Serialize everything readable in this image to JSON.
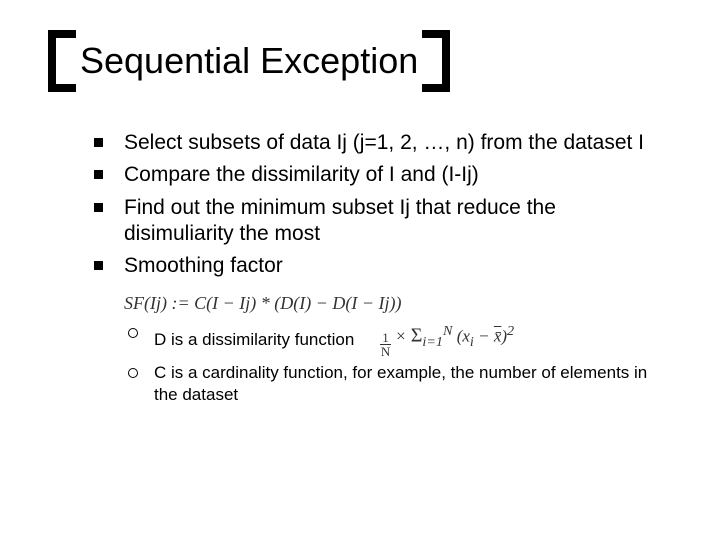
{
  "title": "Sequential Exception",
  "bullets": {
    "b1": "Select subsets of data Ij  (j=1, 2, …, n) from the dataset I",
    "b2": "Compare the dissimilarity of I and (I-Ij)",
    "b3": "Find out the minimum subset Ij that reduce the disimuliarity the most",
    "b4": "Smoothing factor"
  },
  "formula": {
    "sf": "SF(Ij) := C(I − Ij) * (D(I) − D(I − Ij))",
    "avg_prefix": "× ",
    "avg_sum": "Σ",
    "avg_limits_lo": "i=1",
    "avg_limits_hi": "N",
    "avg_term_open": "(x",
    "avg_sub": "i",
    "avg_mid": " − ",
    "avg_xbar": "x̄",
    "avg_close": ")",
    "avg_sup": "2",
    "frac_num": "1",
    "frac_den": "N"
  },
  "sub": {
    "s1": "D is a dissimilarity function",
    "s2": "C is a cardinality function, for example, the number of elements in the dataset"
  },
  "colors": {
    "text": "#000000",
    "bg": "#ffffff"
  },
  "fonts": {
    "title_size_pt": 36,
    "body_size_pt": 21,
    "sub_size_pt": 17
  }
}
